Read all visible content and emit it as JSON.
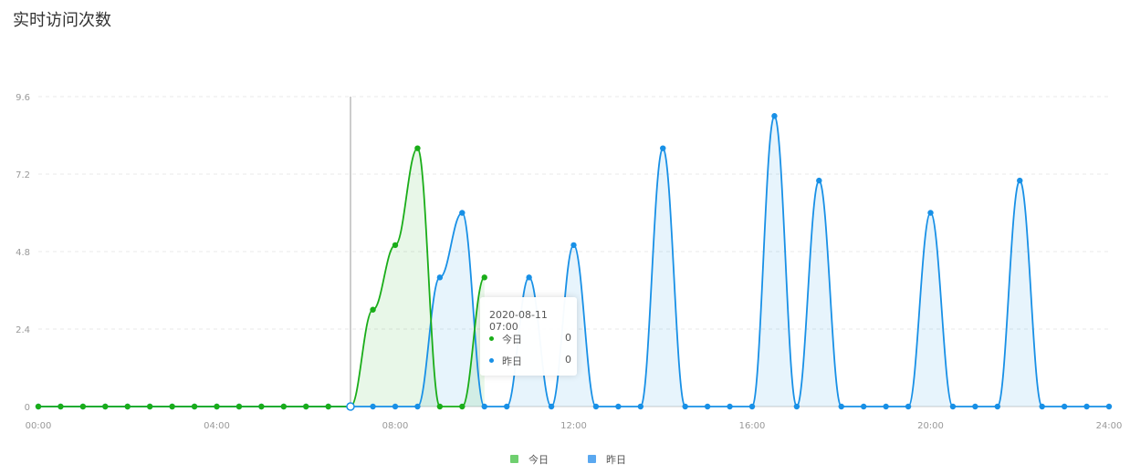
{
  "chart": {
    "title": "实时访问次数",
    "tooltip": {
      "time": "2020-08-11 07:00",
      "rows": [
        {
          "name": "今日",
          "value": "0"
        },
        {
          "name": "昨日",
          "value": "0"
        }
      ]
    },
    "legend": [
      {
        "name": "今日",
        "color": "#6fcf6f"
      },
      {
        "name": "昨日",
        "color": "#5aa8f0"
      }
    ]
  },
  "chart_data": {
    "type": "area",
    "title": "实时访问次数",
    "xlabel": "",
    "ylabel": "",
    "ylim": [
      0,
      9.6
    ],
    "yticks": [
      "0",
      "2.4",
      "4.8",
      "7.2",
      "9.6"
    ],
    "xticks": [
      "00:00",
      "04:00",
      "08:00",
      "12:00",
      "16:00",
      "20:00",
      "24:00"
    ],
    "grid": true,
    "legend_position": "bottom",
    "colors": {
      "today": "#1aad19",
      "yesterday": "#1890e6"
    },
    "series": [
      {
        "name": "今日",
        "x": [
          "00:00",
          "00:30",
          "01:00",
          "01:30",
          "02:00",
          "02:30",
          "03:00",
          "03:30",
          "04:00",
          "04:30",
          "05:00",
          "05:30",
          "06:00",
          "06:30",
          "07:00",
          "07:30",
          "08:00",
          "08:30",
          "09:00",
          "09:30",
          "10:00"
        ],
        "values": [
          0,
          0,
          0,
          0,
          0,
          0,
          0,
          0,
          0,
          0,
          0,
          0,
          0,
          0,
          0,
          3,
          5,
          8,
          0,
          0,
          4
        ]
      },
      {
        "name": "昨日",
        "x": [
          "00:00",
          "00:30",
          "01:00",
          "01:30",
          "02:00",
          "02:30",
          "03:00",
          "03:30",
          "04:00",
          "04:30",
          "05:00",
          "05:30",
          "06:00",
          "06:30",
          "07:00",
          "07:30",
          "08:00",
          "08:30",
          "09:00",
          "09:30",
          "10:00",
          "10:30",
          "11:00",
          "11:30",
          "12:00",
          "12:30",
          "13:00",
          "13:30",
          "14:00",
          "14:30",
          "15:00",
          "15:30",
          "16:00",
          "16:30",
          "17:00",
          "17:30",
          "18:00",
          "18:30",
          "19:00",
          "19:30",
          "20:00",
          "20:30",
          "21:00",
          "21:30",
          "22:00",
          "22:30",
          "23:00",
          "23:30",
          "24:00"
        ],
        "values": [
          0,
          0,
          0,
          0,
          0,
          0,
          0,
          0,
          0,
          0,
          0,
          0,
          0,
          0,
          0,
          0,
          0,
          0,
          4,
          6,
          0,
          0,
          4,
          0,
          5,
          0,
          0,
          0,
          8,
          0,
          0,
          0,
          0,
          9,
          0,
          7,
          0,
          0,
          0,
          0,
          6,
          0,
          0,
          0,
          7,
          0,
          0,
          0,
          0
        ]
      }
    ]
  }
}
